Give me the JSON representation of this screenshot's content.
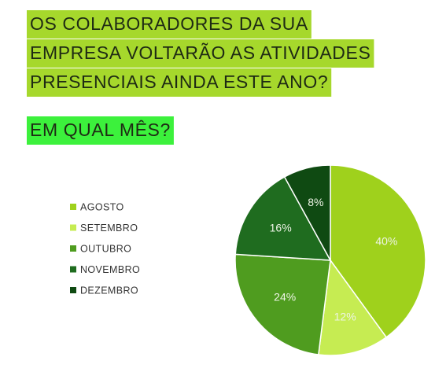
{
  "chart_data": {
    "type": "pie",
    "title": [
      "OS COLABORADORES DA SUA",
      "EMPRESA VOLTARÃO AS ATIVIDADES",
      "PRESENCIAIS AINDA ESTE ANO?"
    ],
    "subtitle": "EM QUAL MÊS?",
    "categories": [
      "AGOSTO",
      "SETEMBRO",
      "OUTUBRO",
      "NOVEMBRO",
      "DEZEMBRO"
    ],
    "values": [
      40,
      12,
      24,
      16,
      8
    ],
    "value_labels": [
      "40%",
      "12%",
      "24%",
      "16%",
      "8%"
    ],
    "colors": [
      "#9fd11c",
      "#c6ec52",
      "#4f9c1f",
      "#1f6c1f",
      "#0f4a12"
    ],
    "legend": "left"
  }
}
